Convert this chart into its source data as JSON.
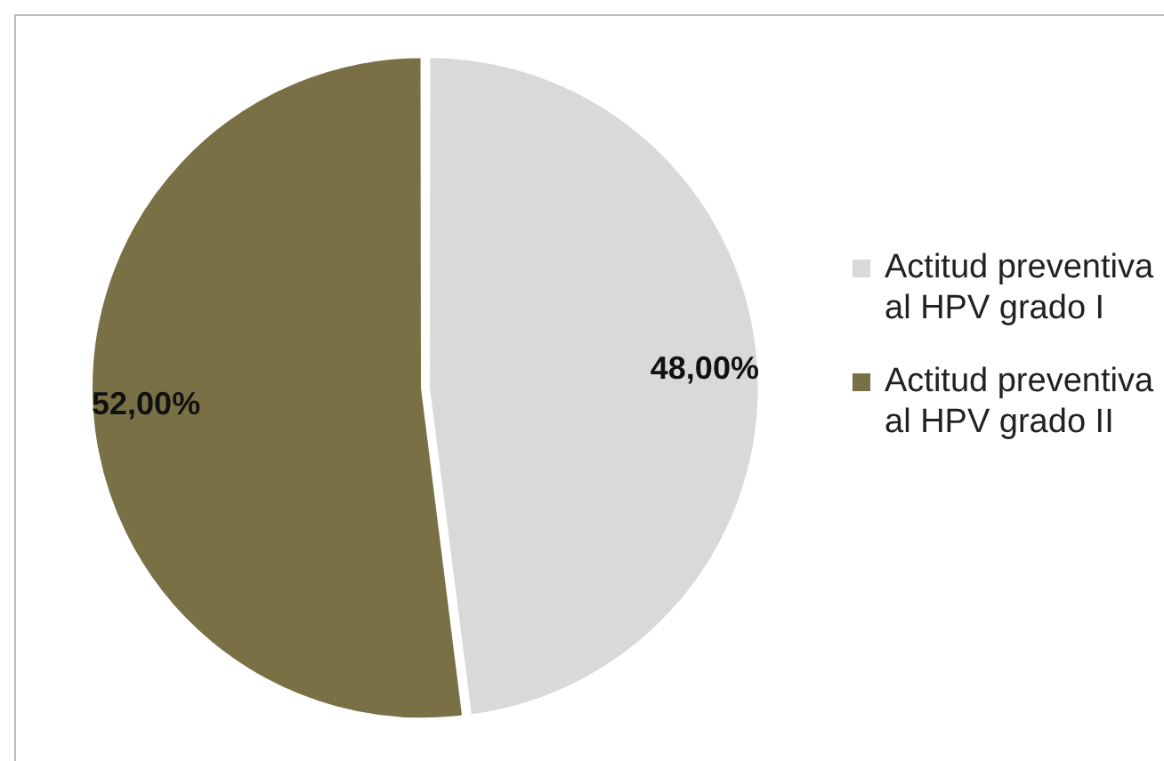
{
  "chart_data": {
    "type": "pie",
    "categories": [
      "Actitud preventiva al HPV grado I",
      "Actitud preventiva al HPV grado II"
    ],
    "values": [
      48,
      52
    ],
    "colors": [
      "#d9d9d9",
      "#7a7045"
    ],
    "value_labels": [
      "48,00%",
      "52,00%"
    ],
    "legend": "right"
  }
}
